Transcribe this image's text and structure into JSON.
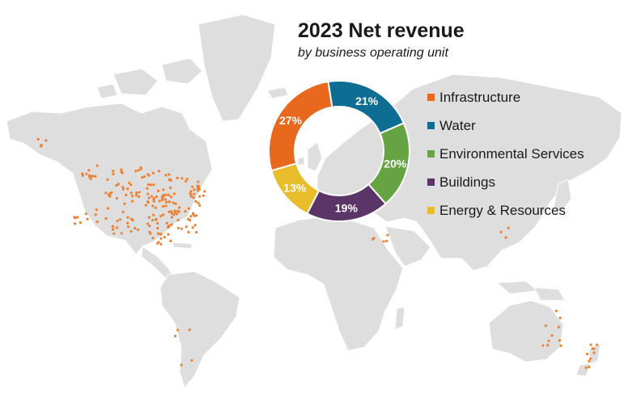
{
  "chart_data": {
    "type": "pie",
    "donut": true,
    "title": "2023 Net revenue",
    "subtitle": "by business operating unit",
    "slices": [
      {
        "name": "Infrastructure",
        "value": 27,
        "label": "27%",
        "color": "#e8691e"
      },
      {
        "name": "Water",
        "value": 21,
        "label": "21%",
        "color": "#0e6d92"
      },
      {
        "name": "Environmental Services",
        "value": 20,
        "label": "20%",
        "color": "#66a443"
      },
      {
        "name": "Buildings",
        "value": 19,
        "label": "19%",
        "color": "#5b3567"
      },
      {
        "name": "Energy & Resources",
        "value": 13,
        "label": "13%",
        "color": "#e9bc2b"
      }
    ],
    "legend_position": "right",
    "background": "world map with office locations",
    "map_color": "#dedede",
    "dot_color": "#f08030"
  }
}
